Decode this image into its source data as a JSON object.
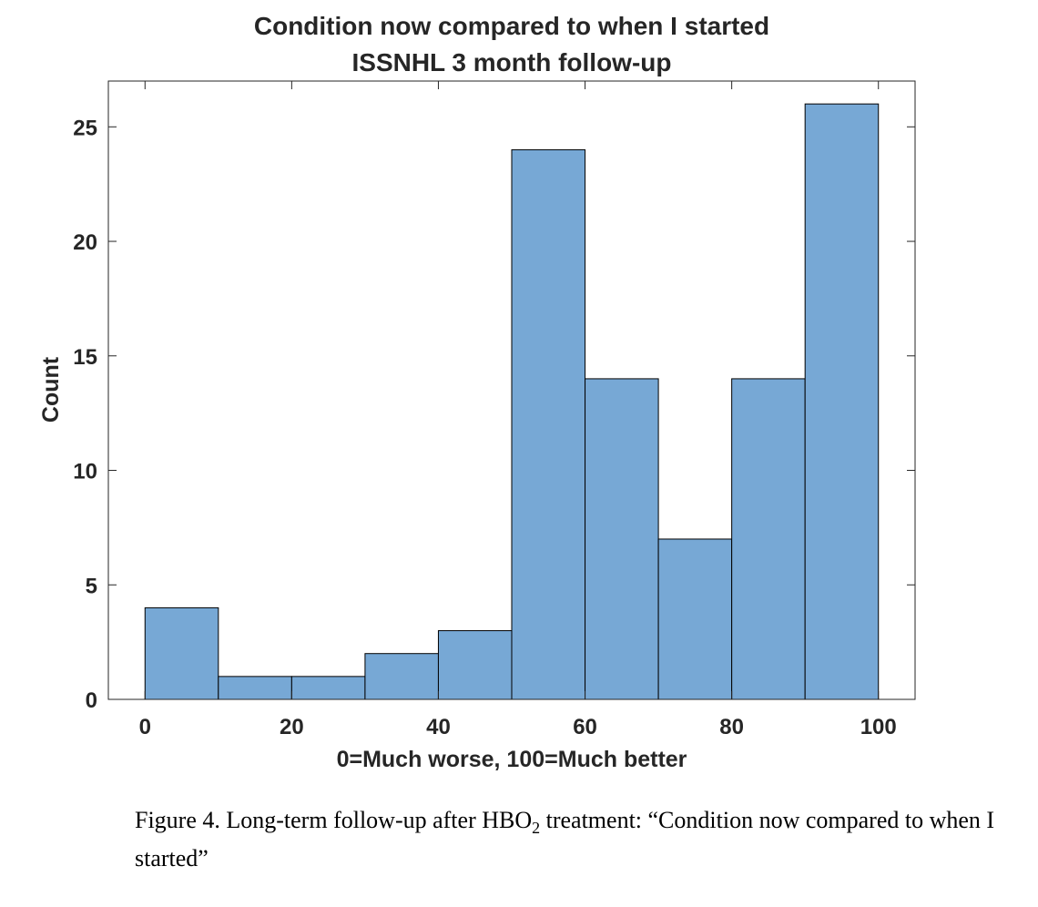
{
  "chart_data": {
    "type": "bar",
    "title": [
      "Condition now compared to when I started",
      "ISSNHL 3 month follow-up"
    ],
    "xlabel": "0=Much worse, 100=Much better",
    "ylabel": "Count",
    "bin_edges": [
      0,
      10,
      20,
      30,
      40,
      50,
      60,
      70,
      80,
      90,
      100
    ],
    "values": [
      4,
      1,
      1,
      2,
      3,
      24,
      14,
      7,
      14,
      26
    ],
    "xlim": [
      -5,
      105
    ],
    "ylim": [
      0,
      27
    ],
    "xticks": [
      0,
      20,
      40,
      60,
      80,
      100
    ],
    "yticks": [
      0,
      5,
      10,
      15,
      20,
      25
    ],
    "grid": false,
    "bar_color": "#77a8d5",
    "edge_color": "#000000"
  },
  "caption": {
    "prefix": "Figure 4. Long-term follow-up after HBO",
    "subscript": "2",
    "suffix": " treatment: “Condition now compared to when I started”"
  }
}
